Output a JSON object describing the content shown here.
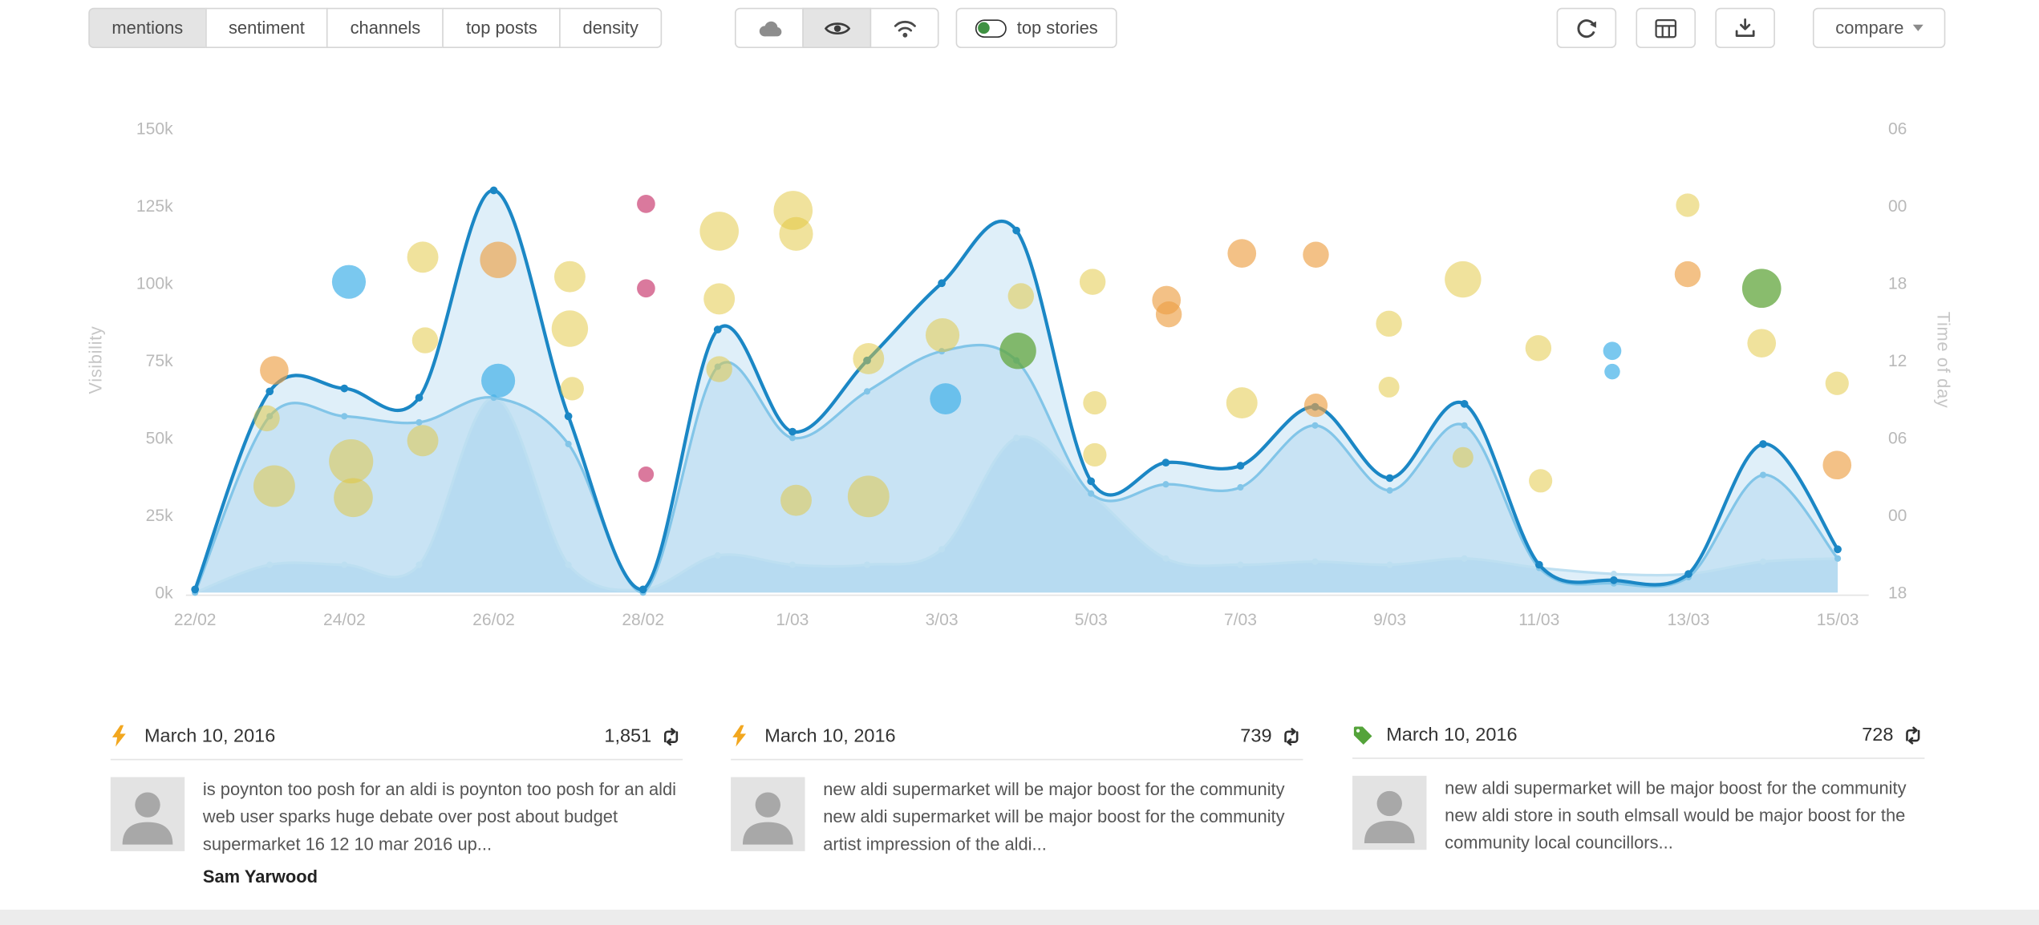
{
  "toolbar": {
    "tabs": [
      {
        "label": "mentions",
        "active": true
      },
      {
        "label": "sentiment",
        "active": false
      },
      {
        "label": "channels",
        "active": false
      },
      {
        "label": "top posts",
        "active": false
      },
      {
        "label": "density",
        "active": false
      }
    ],
    "icon_toggles": [
      {
        "name": "cloud",
        "active": false
      },
      {
        "name": "eye",
        "active": true
      },
      {
        "name": "signal",
        "active": false
      }
    ],
    "top_stories_label": "top stories",
    "compare_label": "compare"
  },
  "chart_data": {
    "type": "line+bubble",
    "x_ticks": [
      "22/02",
      "24/02",
      "26/02",
      "28/02",
      "1/03",
      "3/03",
      "5/03",
      "7/03",
      "9/03",
      "11/03",
      "13/03",
      "15/03"
    ],
    "x_days": [
      "22/02",
      "23/02",
      "24/02",
      "25/02",
      "26/02",
      "27/02",
      "28/02",
      "29/02",
      "1/03",
      "2/03",
      "3/03",
      "4/03",
      "5/03",
      "6/03",
      "7/03",
      "8/03",
      "9/03",
      "10/03",
      "11/03",
      "12/03",
      "13/03",
      "14/03",
      "15/03"
    ],
    "y_left": {
      "label": "Visibility",
      "ticks": [
        "150k",
        "125k",
        "100k",
        "75k",
        "50k",
        "25k",
        "0k"
      ],
      "tick_values": [
        150,
        125,
        100,
        75,
        50,
        25,
        0
      ],
      "unit": "k",
      "ylim": [
        0,
        150
      ]
    },
    "y_right": {
      "label": "Time of day",
      "ticks": [
        "06",
        "00",
        "18",
        "12",
        "06",
        "00",
        "18"
      ]
    },
    "series": [
      {
        "name": "visibility",
        "color": "#1b87c5",
        "dot_r": 3,
        "values": [
          1,
          65,
          66,
          63,
          130,
          57,
          1,
          85,
          52,
          75,
          100,
          117,
          36,
          42,
          41,
          60,
          37,
          61,
          9,
          4,
          6,
          48,
          14
        ]
      },
      {
        "name": "visibility-secondary",
        "color": "#82c5e8",
        "dot_r": 2.5,
        "values": [
          0,
          57,
          57,
          55,
          63,
          48,
          0,
          73,
          50,
          65,
          78,
          75,
          32,
          35,
          34,
          54,
          33,
          54,
          8,
          3,
          5,
          38,
          11
        ]
      },
      {
        "name": "visibility-tertiary",
        "color": "#bddff1",
        "dot_r": 2.5,
        "values": [
          0,
          9,
          9,
          9,
          63,
          9,
          1,
          12,
          9,
          9,
          14,
          50,
          32,
          11,
          9,
          10,
          9,
          11,
          8,
          6,
          6,
          10,
          11
        ]
      }
    ],
    "area_fill": "rgba(140,199,232,0.28)",
    "bubble_palette": {
      "yellow": {
        "fill": "#e2c63a",
        "opacity": 0.5
      },
      "orange": {
        "fill": "#ec9f45",
        "opacity": 0.65
      },
      "blue": {
        "fill": "#41b1e8",
        "opacity": 0.7
      },
      "green": {
        "fill": "#62a63c",
        "opacity": 0.75
      },
      "pink": {
        "fill": "#d4618c",
        "opacity": 0.85
      }
    },
    "bubbles": [
      [
        1.06,
        71.8,
        11,
        "orange"
      ],
      [
        0.96,
        56.3,
        10,
        "yellow"
      ],
      [
        1.06,
        34.4,
        16,
        "yellow"
      ],
      [
        2.06,
        100.4,
        13,
        "blue"
      ],
      [
        2.09,
        42.4,
        17,
        "yellow"
      ],
      [
        2.12,
        30.7,
        15,
        "yellow"
      ],
      [
        3.05,
        108.4,
        12,
        "yellow"
      ],
      [
        3.08,
        81.5,
        10,
        "yellow"
      ],
      [
        3.05,
        49.1,
        12,
        "yellow"
      ],
      [
        4.06,
        107.5,
        14,
        "orange"
      ],
      [
        4.06,
        68.5,
        13,
        "blue"
      ],
      [
        5.02,
        102.1,
        12,
        "yellow"
      ],
      [
        5.02,
        85.3,
        14,
        "yellow"
      ],
      [
        5.05,
        65.9,
        9,
        "yellow"
      ],
      [
        6.04,
        125.6,
        7,
        "pink"
      ],
      [
        6.04,
        98.3,
        7,
        "pink"
      ],
      [
        6.04,
        38.2,
        6,
        "pink"
      ],
      [
        7.02,
        116.8,
        15,
        "yellow"
      ],
      [
        7.02,
        94.9,
        12,
        "yellow"
      ],
      [
        7.02,
        72.2,
        10,
        "yellow"
      ],
      [
        8.01,
        123.5,
        15,
        "yellow"
      ],
      [
        8.05,
        115.9,
        13,
        "yellow"
      ],
      [
        8.05,
        29.8,
        12,
        "yellow"
      ],
      [
        9.02,
        75.6,
        12,
        "yellow"
      ],
      [
        9.02,
        31.1,
        16,
        "yellow"
      ],
      [
        10.01,
        83.2,
        13,
        "yellow"
      ],
      [
        10.05,
        62.6,
        12,
        "blue"
      ],
      [
        11.02,
        78.1,
        14,
        "green"
      ],
      [
        11.06,
        95.8,
        10,
        "yellow"
      ],
      [
        12.02,
        100.4,
        10,
        "yellow"
      ],
      [
        12.05,
        61.3,
        9,
        "yellow"
      ],
      [
        12.05,
        44.5,
        9,
        "yellow"
      ],
      [
        13.01,
        94.5,
        11,
        "orange"
      ],
      [
        13.04,
        89.9,
        10,
        "orange"
      ],
      [
        14.02,
        109.6,
        11,
        "orange"
      ],
      [
        14.02,
        61.3,
        12,
        "yellow"
      ],
      [
        15.01,
        109.2,
        10,
        "orange"
      ],
      [
        15.01,
        60.5,
        9,
        "orange"
      ],
      [
        15.99,
        86.9,
        10,
        "yellow"
      ],
      [
        15.99,
        66.4,
        8,
        "yellow"
      ],
      [
        16.98,
        101.2,
        14,
        "yellow"
      ],
      [
        16.98,
        43.7,
        8,
        "yellow"
      ],
      [
        17.99,
        79,
        10,
        "yellow"
      ],
      [
        18.02,
        36.1,
        9,
        "yellow"
      ],
      [
        18.98,
        78.1,
        7,
        "blue"
      ],
      [
        18.98,
        71.4,
        6,
        "blue"
      ],
      [
        19.99,
        125.2,
        9,
        "yellow"
      ],
      [
        19.99,
        102.9,
        10,
        "orange"
      ],
      [
        20.98,
        98.3,
        15,
        "green"
      ],
      [
        20.98,
        80.6,
        11,
        "yellow"
      ],
      [
        21.99,
        67.6,
        9,
        "yellow"
      ],
      [
        21.99,
        41.2,
        11,
        "orange"
      ]
    ]
  },
  "stories": [
    {
      "icon": "lightning",
      "date": "March 10, 2016",
      "count": "1,851",
      "text": "is poynton too posh for an aldi is poynton too posh for an aldi web user sparks huge debate over post about budget supermarket 16 12 10 mar 2016 up...",
      "author": "Sam Yarwood"
    },
    {
      "icon": "lightning",
      "date": "March 10, 2016",
      "count": "739",
      "text": "new aldi supermarket will be major boost for the community new aldi supermarket will be major boost for the community artist impression of the aldi..."
    },
    {
      "icon": "tag",
      "date": "March 10, 2016",
      "count": "728",
      "text": "new aldi supermarket will be major boost for the community new aldi store in south elmsall would be major boost for the community local councillors..."
    }
  ]
}
